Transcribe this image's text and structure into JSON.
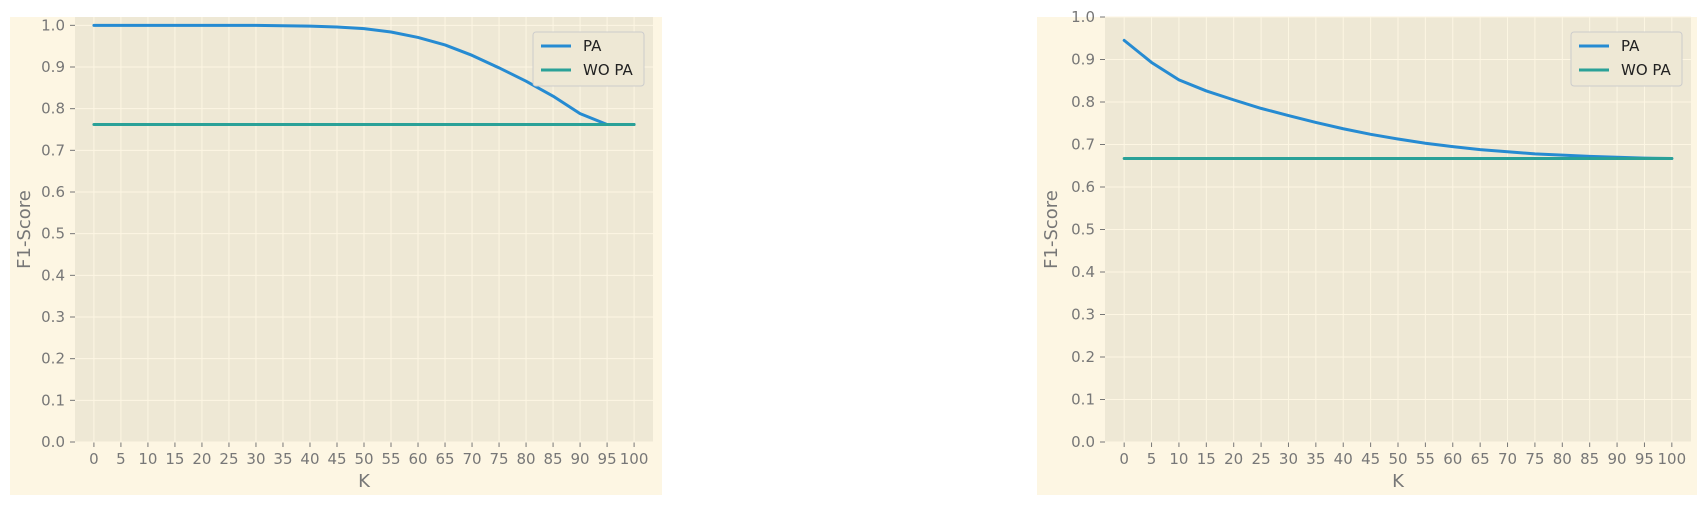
{
  "colors": {
    "figure_bg": "#fdf6e3",
    "axes_bg": "#eee8d5",
    "grid": "#fdf6e3",
    "tick_text": "#777777",
    "legend_bg": "#eee8d5",
    "legend_border": "#cccccc"
  },
  "chart_data": [
    {
      "type": "line",
      "title": "",
      "xlabel": "K",
      "ylabel": "F1-Score",
      "xlim": [
        -3.5,
        103.5
      ],
      "ylim": [
        0,
        1.02
      ],
      "x_ticks": [
        0,
        5,
        10,
        15,
        20,
        25,
        30,
        35,
        40,
        45,
        50,
        55,
        60,
        65,
        70,
        75,
        80,
        85,
        90,
        95,
        100
      ],
      "x_tick_labels": [
        "0",
        "5",
        "10",
        "15",
        "20",
        "25",
        "30",
        "35",
        "40",
        "45",
        "50",
        "55",
        "60",
        "65",
        "70",
        "75",
        "80",
        "85",
        "90",
        "95",
        "100"
      ],
      "y_ticks": [
        0,
        0.1,
        0.2,
        0.3,
        0.4,
        0.5,
        0.6,
        0.7,
        0.8,
        0.9,
        1.0
      ],
      "y_tick_labels": [
        "0.0",
        "0.1",
        "0.2",
        "0.3",
        "0.4",
        "0.5",
        "0.6",
        "0.7",
        "0.8",
        "0.9",
        "1.0"
      ],
      "grid": true,
      "legend_position": "top-right",
      "x": [
        0,
        5,
        10,
        15,
        20,
        25,
        30,
        35,
        40,
        45,
        50,
        55,
        60,
        65,
        70,
        75,
        80,
        85,
        90,
        95,
        100
      ],
      "series": [
        {
          "name": "PA",
          "color": "#268bd2",
          "values": [
            1.0,
            1.0,
            1.0,
            1.0,
            1.0,
            1.0,
            1.0,
            0.999,
            0.998,
            0.996,
            0.992,
            0.984,
            0.971,
            0.953,
            0.928,
            0.898,
            0.866,
            0.83,
            0.788,
            0.762,
            0.762
          ]
        },
        {
          "name": "WO PA",
          "color": "#2aa198",
          "values": [
            0.762,
            0.762,
            0.762,
            0.762,
            0.762,
            0.762,
            0.762,
            0.762,
            0.762,
            0.762,
            0.762,
            0.762,
            0.762,
            0.762,
            0.762,
            0.762,
            0.762,
            0.762,
            0.762,
            0.762,
            0.762
          ]
        }
      ]
    },
    {
      "type": "line",
      "title": "",
      "xlabel": "K",
      "ylabel": "F1-Score",
      "xlim": [
        -3.5,
        103.5
      ],
      "ylim": [
        0,
        1.0
      ],
      "x_ticks": [
        0,
        5,
        10,
        15,
        20,
        25,
        30,
        35,
        40,
        45,
        50,
        55,
        60,
        65,
        70,
        75,
        80,
        85,
        90,
        95,
        100
      ],
      "x_tick_labels": [
        "0",
        "5",
        "10",
        "15",
        "20",
        "25",
        "30",
        "35",
        "40",
        "45",
        "50",
        "55",
        "60",
        "65",
        "70",
        "75",
        "80",
        "85",
        "90",
        "95",
        "100"
      ],
      "y_ticks": [
        0,
        0.1,
        0.2,
        0.3,
        0.4,
        0.5,
        0.6,
        0.7,
        0.8,
        0.9,
        1.0
      ],
      "y_tick_labels": [
        "0.0",
        "0.1",
        "0.2",
        "0.3",
        "0.4",
        "0.5",
        "0.6",
        "0.7",
        "0.8",
        "0.9",
        "1.0"
      ],
      "grid": true,
      "legend_position": "top-right",
      "x": [
        0,
        5,
        10,
        15,
        20,
        25,
        30,
        35,
        40,
        45,
        50,
        55,
        60,
        65,
        70,
        75,
        80,
        85,
        90,
        95,
        100
      ],
      "series": [
        {
          "name": "PA",
          "color": "#268bd2",
          "values": [
            0.945,
            0.893,
            0.852,
            0.826,
            0.805,
            0.785,
            0.768,
            0.752,
            0.737,
            0.724,
            0.713,
            0.703,
            0.695,
            0.688,
            0.683,
            0.678,
            0.675,
            0.672,
            0.67,
            0.668,
            0.667
          ]
        },
        {
          "name": "WO PA",
          "color": "#2aa198",
          "values": [
            0.667,
            0.667,
            0.667,
            0.667,
            0.667,
            0.667,
            0.667,
            0.667,
            0.667,
            0.667,
            0.667,
            0.667,
            0.667,
            0.667,
            0.667,
            0.667,
            0.667,
            0.667,
            0.667,
            0.667,
            0.667
          ]
        }
      ]
    }
  ]
}
